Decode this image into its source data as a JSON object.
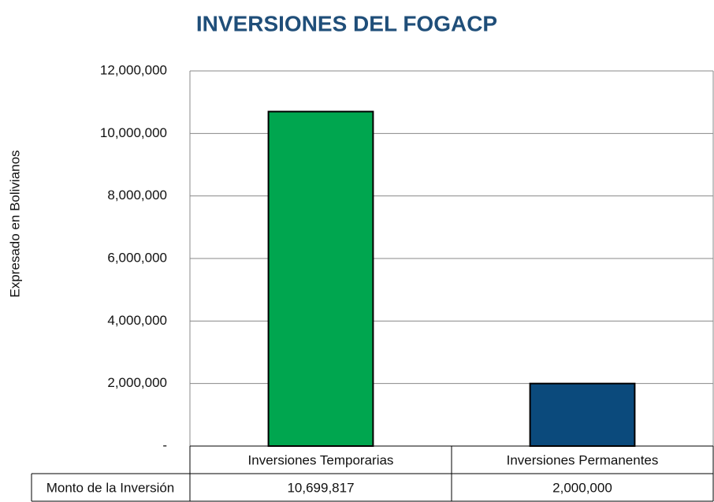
{
  "chart_data": {
    "type": "bar",
    "title": "INVERSIONES DEL FOGACP",
    "y_label": "Expresado en Bolivianos",
    "categories": [
      "Inversiones Temporarias",
      "Inversiones Permanentes"
    ],
    "values": [
      10699817,
      2000000
    ],
    "value_labels": [
      "10,699,817",
      "2,000,000"
    ],
    "colors": [
      "#00a64f",
      "#0b4a7c"
    ],
    "table_row_label": "Monto de la Inversión",
    "ylim": [
      0,
      12000000
    ],
    "yticks": [
      {
        "value": 0,
        "label": "-"
      },
      {
        "value": 2000000,
        "label": "2,000,000"
      },
      {
        "value": 4000000,
        "label": "4,000,000"
      },
      {
        "value": 6000000,
        "label": "6,000,000"
      },
      {
        "value": 8000000,
        "label": "8,000,000"
      },
      {
        "value": 10000000,
        "label": "10,000,000"
      },
      {
        "value": 12000000,
        "label": "12,000,000"
      }
    ],
    "grid": true
  }
}
